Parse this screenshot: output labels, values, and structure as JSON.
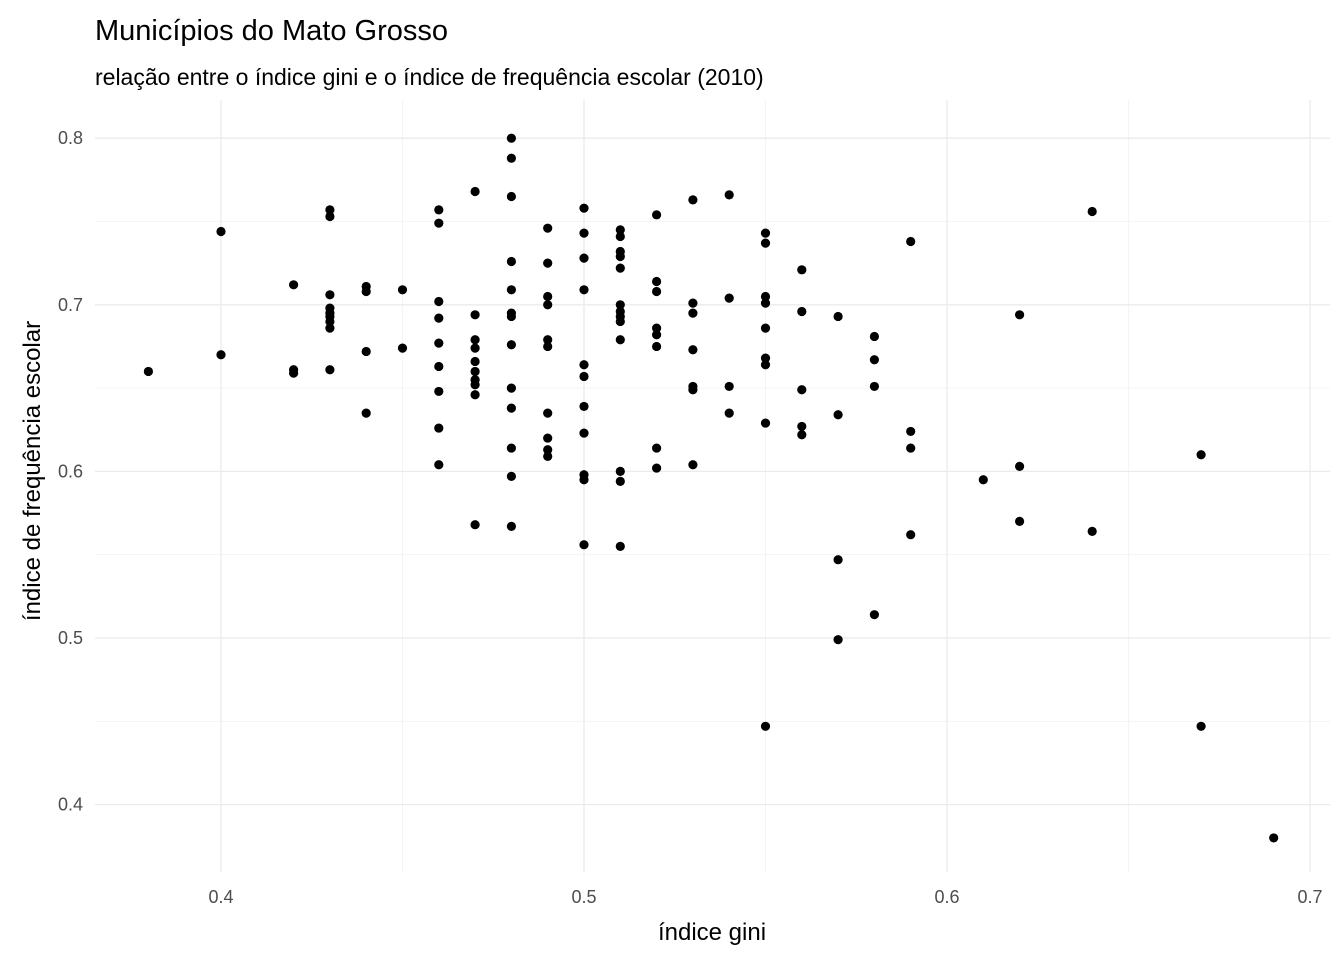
{
  "chart_data": {
    "type": "scatter",
    "title": "Municípios do Mato Grosso",
    "subtitle": "relação entre o índice gini e o índice de frequência escolar (2010)",
    "xlabel": "índice gini",
    "ylabel": "índice de frequência escolar",
    "xlim": [
      0.365,
      0.705
    ],
    "ylim": [
      0.36,
      0.81
    ],
    "x_ticks": [
      "0.4",
      "0.5",
      "0.6",
      "0.7"
    ],
    "y_ticks": [
      "0.4",
      "0.5",
      "0.6",
      "0.7",
      "0.8"
    ],
    "grid": true,
    "point_color": "#000000",
    "points": [
      [
        0.38,
        0.66
      ],
      [
        0.4,
        0.744
      ],
      [
        0.4,
        0.67
      ],
      [
        0.42,
        0.712
      ],
      [
        0.42,
        0.661
      ],
      [
        0.42,
        0.659
      ],
      [
        0.43,
        0.757
      ],
      [
        0.43,
        0.753
      ],
      [
        0.43,
        0.706
      ],
      [
        0.43,
        0.698
      ],
      [
        0.43,
        0.695
      ],
      [
        0.43,
        0.693
      ],
      [
        0.43,
        0.69
      ],
      [
        0.43,
        0.686
      ],
      [
        0.43,
        0.661
      ],
      [
        0.44,
        0.711
      ],
      [
        0.44,
        0.708
      ],
      [
        0.44,
        0.672
      ],
      [
        0.44,
        0.635
      ],
      [
        0.45,
        0.709
      ],
      [
        0.45,
        0.674
      ],
      [
        0.46,
        0.757
      ],
      [
        0.46,
        0.749
      ],
      [
        0.46,
        0.702
      ],
      [
        0.46,
        0.692
      ],
      [
        0.46,
        0.677
      ],
      [
        0.46,
        0.663
      ],
      [
        0.46,
        0.648
      ],
      [
        0.46,
        0.626
      ],
      [
        0.46,
        0.604
      ],
      [
        0.47,
        0.768
      ],
      [
        0.47,
        0.694
      ],
      [
        0.47,
        0.679
      ],
      [
        0.47,
        0.674
      ],
      [
        0.47,
        0.666
      ],
      [
        0.47,
        0.66
      ],
      [
        0.47,
        0.655
      ],
      [
        0.47,
        0.652
      ],
      [
        0.47,
        0.646
      ],
      [
        0.47,
        0.568
      ],
      [
        0.48,
        0.8
      ],
      [
        0.48,
        0.788
      ],
      [
        0.48,
        0.765
      ],
      [
        0.48,
        0.726
      ],
      [
        0.48,
        0.709
      ],
      [
        0.48,
        0.695
      ],
      [
        0.48,
        0.693
      ],
      [
        0.48,
        0.676
      ],
      [
        0.48,
        0.65
      ],
      [
        0.48,
        0.638
      ],
      [
        0.48,
        0.614
      ],
      [
        0.48,
        0.597
      ],
      [
        0.48,
        0.567
      ],
      [
        0.49,
        0.746
      ],
      [
        0.49,
        0.725
      ],
      [
        0.49,
        0.705
      ],
      [
        0.49,
        0.7
      ],
      [
        0.49,
        0.679
      ],
      [
        0.49,
        0.675
      ],
      [
        0.49,
        0.635
      ],
      [
        0.49,
        0.62
      ],
      [
        0.49,
        0.613
      ],
      [
        0.49,
        0.609
      ],
      [
        0.5,
        0.758
      ],
      [
        0.5,
        0.743
      ],
      [
        0.5,
        0.728
      ],
      [
        0.5,
        0.709
      ],
      [
        0.5,
        0.664
      ],
      [
        0.5,
        0.657
      ],
      [
        0.5,
        0.639
      ],
      [
        0.5,
        0.623
      ],
      [
        0.5,
        0.598
      ],
      [
        0.5,
        0.595
      ],
      [
        0.5,
        0.556
      ],
      [
        0.51,
        0.745
      ],
      [
        0.51,
        0.741
      ],
      [
        0.51,
        0.732
      ],
      [
        0.51,
        0.729
      ],
      [
        0.51,
        0.722
      ],
      [
        0.51,
        0.7
      ],
      [
        0.51,
        0.696
      ],
      [
        0.51,
        0.693
      ],
      [
        0.51,
        0.69
      ],
      [
        0.51,
        0.679
      ],
      [
        0.51,
        0.6
      ],
      [
        0.51,
        0.594
      ],
      [
        0.51,
        0.555
      ],
      [
        0.52,
        0.754
      ],
      [
        0.52,
        0.714
      ],
      [
        0.52,
        0.708
      ],
      [
        0.52,
        0.686
      ],
      [
        0.52,
        0.682
      ],
      [
        0.52,
        0.675
      ],
      [
        0.52,
        0.614
      ],
      [
        0.52,
        0.602
      ],
      [
        0.53,
        0.763
      ],
      [
        0.53,
        0.701
      ],
      [
        0.53,
        0.695
      ],
      [
        0.53,
        0.673
      ],
      [
        0.53,
        0.651
      ],
      [
        0.53,
        0.649
      ],
      [
        0.53,
        0.604
      ],
      [
        0.54,
        0.766
      ],
      [
        0.54,
        0.704
      ],
      [
        0.54,
        0.651
      ],
      [
        0.54,
        0.635
      ],
      [
        0.55,
        0.743
      ],
      [
        0.55,
        0.737
      ],
      [
        0.55,
        0.705
      ],
      [
        0.55,
        0.701
      ],
      [
        0.55,
        0.686
      ],
      [
        0.55,
        0.668
      ],
      [
        0.55,
        0.664
      ],
      [
        0.55,
        0.629
      ],
      [
        0.55,
        0.447
      ],
      [
        0.56,
        0.721
      ],
      [
        0.56,
        0.696
      ],
      [
        0.56,
        0.649
      ],
      [
        0.56,
        0.627
      ],
      [
        0.56,
        0.622
      ],
      [
        0.57,
        0.693
      ],
      [
        0.57,
        0.634
      ],
      [
        0.57,
        0.547
      ],
      [
        0.57,
        0.499
      ],
      [
        0.58,
        0.681
      ],
      [
        0.58,
        0.667
      ],
      [
        0.58,
        0.651
      ],
      [
        0.58,
        0.514
      ],
      [
        0.59,
        0.738
      ],
      [
        0.59,
        0.624
      ],
      [
        0.59,
        0.614
      ],
      [
        0.59,
        0.562
      ],
      [
        0.61,
        0.595
      ],
      [
        0.62,
        0.694
      ],
      [
        0.62,
        0.603
      ],
      [
        0.62,
        0.57
      ],
      [
        0.64,
        0.756
      ],
      [
        0.64,
        0.564
      ],
      [
        0.67,
        0.61
      ],
      [
        0.67,
        0.447
      ],
      [
        0.69,
        0.38
      ]
    ]
  }
}
